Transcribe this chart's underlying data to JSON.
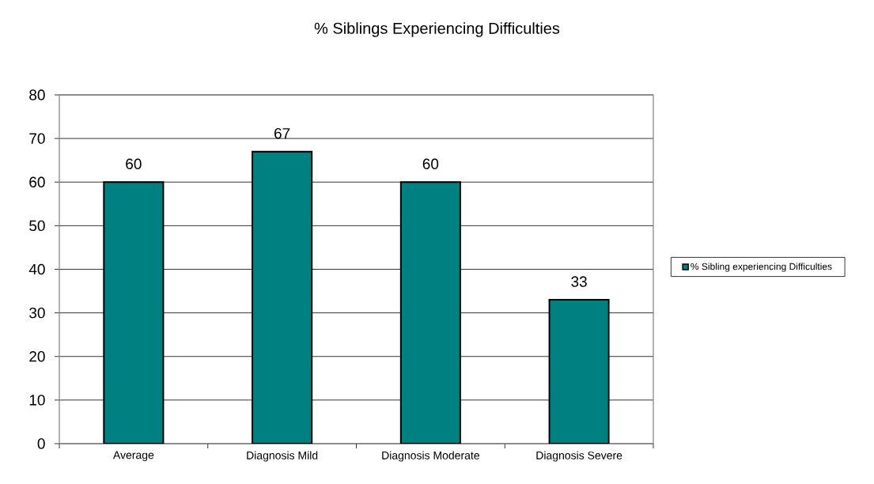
{
  "chart_data": {
    "type": "bar",
    "title": "% Siblings Experiencing Difficulties",
    "categories": [
      "Average",
      "Diagnosis Mild",
      "Diagnosis Moderate",
      "Diagnosis Severe"
    ],
    "series": [
      {
        "name": "% Sibling experiencing Difficulties",
        "color": "#008080",
        "values": [
          60,
          67,
          60,
          33
        ]
      }
    ],
    "ylim": [
      0,
      80
    ],
    "yticks": [
      0,
      10,
      20,
      30,
      40,
      50,
      60,
      70,
      80
    ],
    "grid": "y",
    "legend": "right",
    "data_labels": true
  }
}
